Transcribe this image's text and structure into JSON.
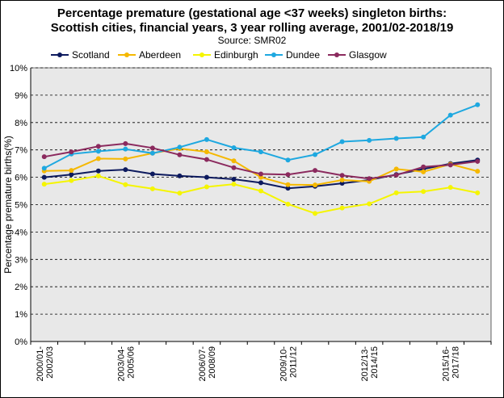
{
  "chart_data": {
    "type": "line",
    "title_line1": "Percentage premature (gestational age <37 weeks) singleton births:",
    "title_line2": "Scottish cities, financial years, 3 year rolling average, 2001/02-2018/19",
    "source": "Source:  SMR02",
    "ylabel": "Percentage premature births(%)",
    "xlabel": "",
    "ylim": [
      0,
      10
    ],
    "yticks": [
      "0%",
      "1%",
      "2%",
      "3%",
      "4%",
      "5%",
      "6%",
      "7%",
      "8%",
      "9%",
      "10%"
    ],
    "x_tick_labels": [
      {
        "index": 0,
        "line1": "2000/01-",
        "line2": "2002/03"
      },
      {
        "index": 3,
        "line1": "2003/04-",
        "line2": "2005/06"
      },
      {
        "index": 6,
        "line1": "2006/07-",
        "line2": "2008/09"
      },
      {
        "index": 9,
        "line1": "2009/10-",
        "line2": "2011/12"
      },
      {
        "index": 12,
        "line1": "2012/13-",
        "line2": "2014/15"
      },
      {
        "index": 15,
        "line1": "2015/16-",
        "line2": "2017/18"
      }
    ],
    "n_points": 17,
    "grid": true,
    "series": [
      {
        "name": "Scotland",
        "color": "#0d1a5e",
        "values": [
          6.0,
          6.1,
          6.23,
          6.28,
          6.12,
          6.05,
          6.0,
          5.93,
          5.8,
          5.6,
          5.67,
          5.78,
          5.9,
          6.1,
          6.3,
          6.5,
          6.63
        ]
      },
      {
        "name": "Aberdeen",
        "color": "#f5b800",
        "values": [
          6.23,
          6.25,
          6.68,
          6.67,
          6.88,
          7.05,
          6.93,
          6.6,
          6.0,
          5.73,
          5.72,
          5.9,
          5.85,
          6.3,
          6.2,
          6.48,
          6.22
        ]
      },
      {
        "name": "Edinburgh",
        "color": "#f5f500",
        "values": [
          5.75,
          5.88,
          6.05,
          5.73,
          5.58,
          5.42,
          5.65,
          5.75,
          5.5,
          5.02,
          4.68,
          4.88,
          5.03,
          5.43,
          5.48,
          5.63,
          5.43
        ]
      },
      {
        "name": "Dundee",
        "color": "#1ea8e0",
        "values": [
          6.33,
          6.85,
          6.95,
          7.03,
          6.88,
          7.1,
          7.38,
          7.08,
          6.93,
          6.63,
          6.83,
          7.3,
          7.35,
          7.42,
          7.47,
          8.27,
          8.65
        ]
      },
      {
        "name": "Glasgow",
        "color": "#8b2a5e",
        "values": [
          6.75,
          6.93,
          7.13,
          7.23,
          7.07,
          6.82,
          6.65,
          6.35,
          6.12,
          6.1,
          6.25,
          6.07,
          5.95,
          6.08,
          6.38,
          6.45,
          6.58
        ]
      }
    ]
  }
}
